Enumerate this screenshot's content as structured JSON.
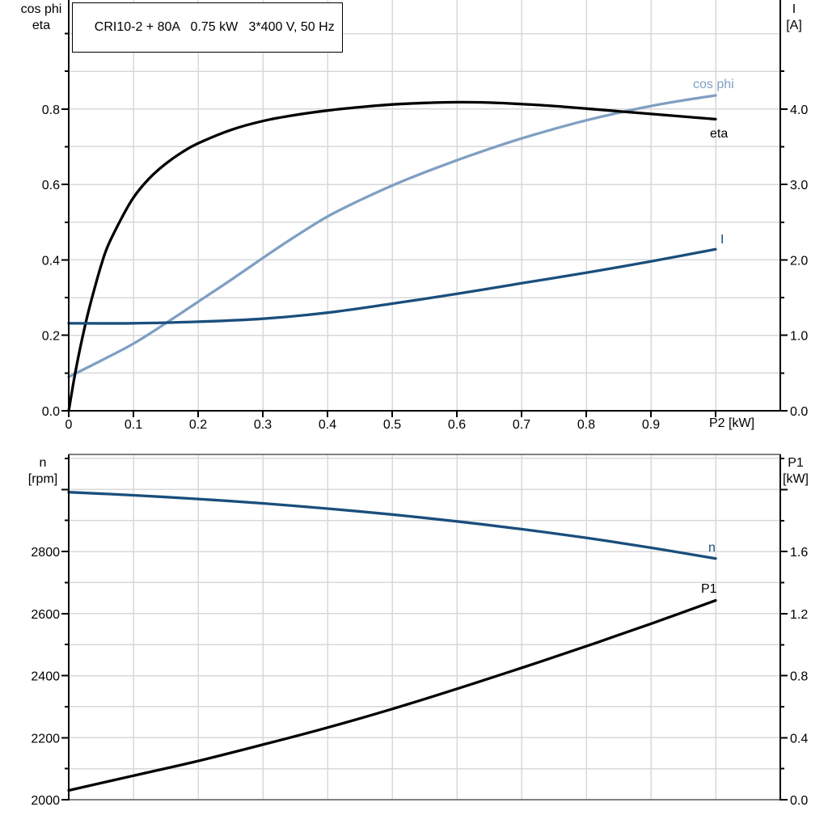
{
  "header": {
    "title": "CRI10-2 + 80A   0.75 kW   3*400 V, 50 Hz"
  },
  "colors": {
    "light_blue": "#7f9fc3",
    "dark_blue": "#1a4e7c",
    "black": "#000000",
    "grid": "#d8d8d8",
    "frame_gray": "#808080"
  },
  "chart_data": [
    {
      "type": "line",
      "title": "CRI10-2 + 80A   0.75 kW   3*400 V, 50 Hz",
      "xlabel": "P2 [kW]",
      "xlim": [
        0,
        1.1
      ],
      "x_major_ticks": [
        0,
        0.1,
        0.2,
        0.3,
        0.4,
        0.5,
        0.6,
        0.7,
        0.8,
        0.9,
        1.0
      ],
      "x_tick_labels": [
        "0",
        "0.1",
        "0.2",
        "0.3",
        "0.4",
        "0.5",
        "0.6",
        "0.7",
        "0.8",
        "0.9",
        ""
      ],
      "x_grid": [
        0.1,
        0.2,
        0.3,
        0.4,
        0.5,
        0.6,
        0.7,
        0.8,
        0.9,
        1.0
      ],
      "grid_on": true,
      "left_axis": {
        "title": [
          "cos phi",
          "eta"
        ],
        "lim": [
          0,
          1.09
        ],
        "major_ticks": [
          0,
          0.2,
          0.4,
          0.6,
          0.8
        ],
        "tick_labels": [
          "0.0",
          "0.2",
          "0.4",
          "0.6",
          "0.8"
        ],
        "minor_ticks": [
          0.1,
          0.3,
          0.5,
          0.7,
          0.9,
          1.0
        ],
        "grid": [
          0.1,
          0.2,
          0.3,
          0.4,
          0.5,
          0.6,
          0.7,
          0.8,
          0.9,
          1.0
        ]
      },
      "right_axis": {
        "title": [
          "I",
          "[A]"
        ],
        "lim": [
          0,
          5.44
        ],
        "major_ticks": [
          0,
          1,
          2,
          3,
          4
        ],
        "tick_labels": [
          "0.0",
          "1.0",
          "2.0",
          "3.0",
          "4.0"
        ],
        "minor_ticks": [
          0.5,
          1.5,
          2.5,
          3.5,
          4.5
        ]
      },
      "series": [
        {
          "name": "cos phi",
          "axis": "left",
          "color": "#7f9fc3",
          "x": [
            0,
            0.05,
            0.1,
            0.15,
            0.2,
            0.25,
            0.3,
            0.35,
            0.4,
            0.45,
            0.5,
            0.55,
            0.6,
            0.65,
            0.7,
            0.75,
            0.8,
            0.85,
            0.9,
            0.95,
            1.0
          ],
          "y": [
            0.09,
            0.133,
            0.178,
            0.232,
            0.289,
            0.346,
            0.405,
            0.462,
            0.515,
            0.558,
            0.597,
            0.632,
            0.664,
            0.694,
            0.722,
            0.747,
            0.77,
            0.79,
            0.808,
            0.823,
            0.836
          ]
        },
        {
          "name": "eta",
          "axis": "left",
          "color": "#000000",
          "x": [
            0,
            0.01,
            0.02,
            0.03,
            0.04,
            0.05,
            0.06,
            0.08,
            0.1,
            0.125,
            0.15,
            0.175,
            0.2,
            0.25,
            0.3,
            0.35,
            0.4,
            0.45,
            0.5,
            0.55,
            0.6,
            0.65,
            0.7,
            0.75,
            0.8,
            0.85,
            0.9,
            0.95,
            1.0
          ],
          "y": [
            0,
            0.1,
            0.185,
            0.26,
            0.325,
            0.385,
            0.435,
            0.505,
            0.565,
            0.617,
            0.655,
            0.685,
            0.709,
            0.744,
            0.768,
            0.784,
            0.796,
            0.805,
            0.812,
            0.816,
            0.818,
            0.817,
            0.813,
            0.808,
            0.801,
            0.794,
            0.787,
            0.78,
            0.773
          ]
        },
        {
          "name": "I",
          "axis": "right",
          "color": "#1a4e7c",
          "x": [
            0,
            0.1,
            0.2,
            0.3,
            0.4,
            0.5,
            0.6,
            0.7,
            0.8,
            0.9,
            1.0
          ],
          "y": [
            1.16,
            1.16,
            1.18,
            1.22,
            1.3,
            1.42,
            1.55,
            1.69,
            1.83,
            1.98,
            2.14
          ]
        }
      ]
    },
    {
      "type": "line",
      "xlabel": "",
      "xlim": [
        0,
        1.1
      ],
      "x_grid": [
        0.1,
        0.2,
        0.3,
        0.4,
        0.5,
        0.6,
        0.7,
        0.8,
        0.9,
        1.0
      ],
      "grid_on": true,
      "left_axis": {
        "title": [
          "n",
          "[rpm]"
        ],
        "lim": [
          2000,
          3113
        ],
        "major_ticks": [
          2000,
          2200,
          2400,
          2600,
          2800,
          3000
        ],
        "tick_labels": [
          "2000",
          "2200",
          "2400",
          "2600",
          "2800",
          ""
        ],
        "minor_ticks": [
          2100,
          2300,
          2500,
          2700,
          2900,
          3100
        ],
        "grid": [
          2100,
          2200,
          2300,
          2400,
          2500,
          2600,
          2700,
          2800,
          2900,
          3000,
          3100
        ]
      },
      "right_axis": {
        "title": [
          "P1",
          "[kW]"
        ],
        "lim": [
          0,
          2.23
        ],
        "major_ticks": [
          0,
          0.4,
          0.8,
          1.2,
          1.6,
          2.0
        ],
        "tick_labels": [
          "0.0",
          "0.4",
          "0.8",
          "1.2",
          "1.6",
          ""
        ],
        "minor_ticks": [
          0.2,
          0.6,
          1.0,
          1.4,
          1.8,
          2.2
        ]
      },
      "series": [
        {
          "name": "n",
          "axis": "left",
          "color": "#1a4e7c",
          "x": [
            0,
            0.1,
            0.2,
            0.3,
            0.4,
            0.5,
            0.6,
            0.7,
            0.8,
            0.9,
            1.0
          ],
          "y": [
            2991,
            2981,
            2969,
            2955,
            2938,
            2919,
            2897,
            2872,
            2844,
            2812,
            2777
          ]
        },
        {
          "name": "P1",
          "axis": "left2right",
          "color": "#000000",
          "x": [
            0,
            0.1,
            0.2,
            0.3,
            0.4,
            0.5,
            0.6,
            0.7,
            0.8,
            0.9,
            1.0
          ],
          "y": [
            0.06,
            0.155,
            0.25,
            0.355,
            0.465,
            0.585,
            0.715,
            0.85,
            0.99,
            1.135,
            1.285
          ]
        }
      ]
    }
  ]
}
